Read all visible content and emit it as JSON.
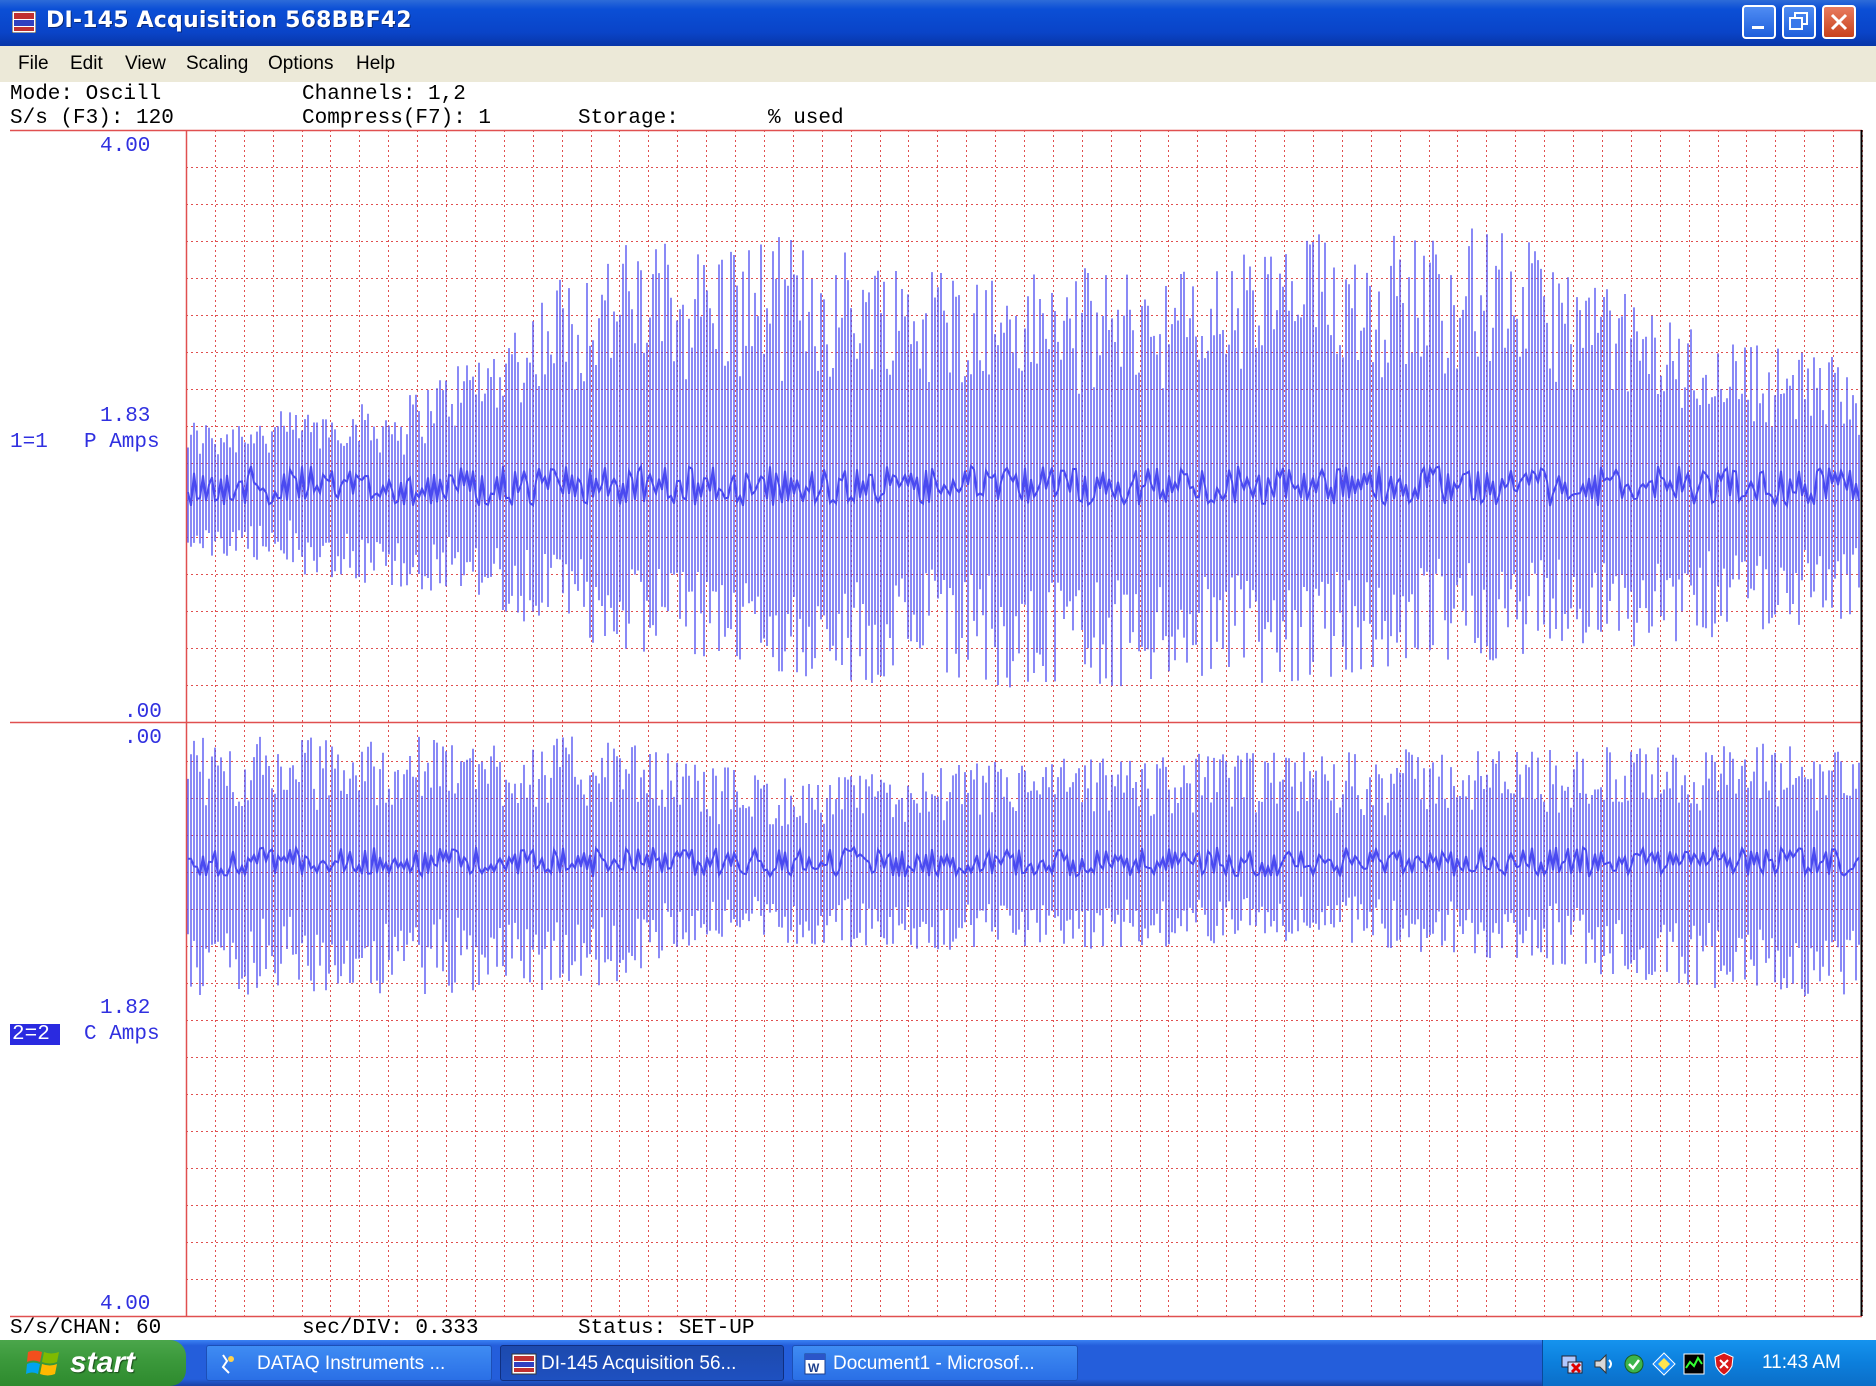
{
  "window": {
    "title": "DI-145 Acquisition 568BBF42",
    "controls": [
      "minimize",
      "restore",
      "close"
    ]
  },
  "menu": {
    "items": [
      "File",
      "Edit",
      "View",
      "Scaling",
      "Options",
      "Help"
    ]
  },
  "status_top": {
    "mode": "Mode: Oscill",
    "channels": "Channels: 1,2",
    "sample_rate": "S/s (F3): 120",
    "compress": "Compress(F7): 1",
    "storage": "Storage:",
    "used": "% used"
  },
  "status_bottom": {
    "per_chan": "S/s/CHAN: 60",
    "sec_div": "sec/DIV: 0.333",
    "status": "Status: SET-UP"
  },
  "channels": [
    {
      "top_value": "4.00",
      "mid_value": "1.83",
      "bottom_value": ".00",
      "channel_label": "1=1",
      "unit_label": "P Amps",
      "highlighted": false
    },
    {
      "top_value": ".00",
      "mid_value": "1.82",
      "bottom_value": "4.00",
      "channel_label": "2=2",
      "unit_label": "C Amps",
      "highlighted": true
    }
  ],
  "colors": {
    "trace": "#4a4af0",
    "grid": "#e05050",
    "axis_text": "#3030e0",
    "highlight": "#2a2ae0"
  },
  "taskbar": {
    "start_label": "start",
    "tasks": [
      {
        "label": "DATAQ Instruments ...",
        "icon": "dataq-icon",
        "active": false
      },
      {
        "label": "DI-145 Acquisition 56...",
        "icon": "oscilloscope-app-icon",
        "active": true
      },
      {
        "label": "Document1 - Microsof...",
        "icon": "word-document-icon",
        "active": false
      }
    ],
    "tray_icons": [
      "network-warning-icon",
      "speaker-icon",
      "update-icon",
      "display-icon",
      "taskmanager-icon",
      "security-shield-icon"
    ],
    "clock": "11:43 AM"
  }
}
